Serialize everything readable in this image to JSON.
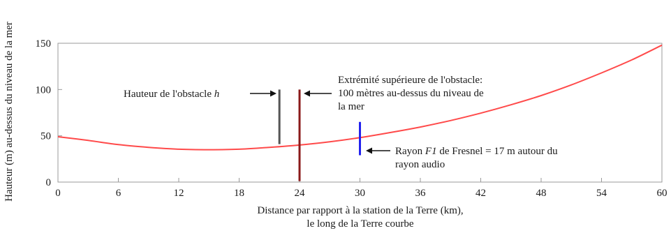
{
  "chart_data": {
    "type": "line",
    "title": "",
    "xlabel": [
      "Distance par rapport à la station de la Terre (km),",
      "le long de la Terre courbe"
    ],
    "ylabel": "Hauteur (m) au-dessus du niveau de la mer",
    "xlim": [
      0,
      60
    ],
    "ylim": [
      0,
      150
    ],
    "x_ticks": [
      0,
      6,
      12,
      18,
      24,
      30,
      36,
      42,
      48,
      54,
      60
    ],
    "y_ticks": [
      0,
      50,
      100,
      150
    ],
    "grid": false,
    "series": [
      {
        "color": "#ff4a4a",
        "x": [
          0,
          3,
          6,
          9,
          12,
          15,
          18,
          21,
          24,
          27,
          30,
          33,
          36,
          39,
          42,
          45,
          48,
          51,
          54,
          57,
          60
        ],
        "y": [
          49,
          45,
          40.5,
          37.5,
          35.5,
          35,
          35.5,
          37.5,
          40,
          43.5,
          48,
          53.5,
          59.5,
          66.5,
          74.5,
          83.5,
          93.5,
          105,
          118,
          132,
          148
        ]
      }
    ],
    "markers": [
      {
        "x": 22,
        "y0": 41,
        "y1": 100,
        "color": "#555555"
      },
      {
        "x": 24,
        "y0": 1,
        "y1": 100,
        "color": "#8b1a1a"
      },
      {
        "x": 30,
        "y0": 29,
        "y1": 65,
        "color": "#2222ee"
      }
    ],
    "annotations": {
      "obstacle_height": {
        "text": "Hauteur de l'obstacle ",
        "italic": "h"
      },
      "obstacle_top": [
        "Extrémité supérieure de l'obstacle:",
        "100 mètres au-dessus du niveau de",
        "la mer"
      ],
      "fresnel": {
        "line1_before": "Rayon ",
        "line1_italic": "F1",
        "line1_after": " de Fresnel = 17 m autour du",
        "line2": "rayon audio"
      }
    }
  }
}
